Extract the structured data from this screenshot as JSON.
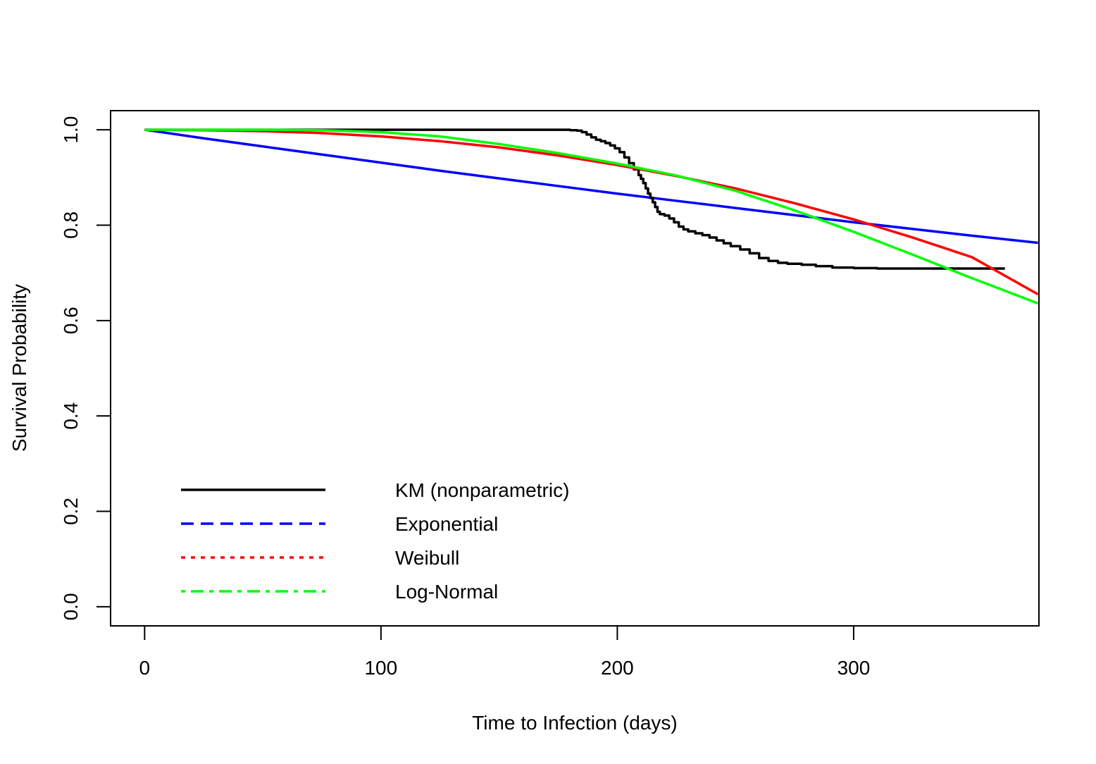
{
  "chart_data": {
    "type": "line",
    "title": "",
    "xlabel": "Time to Infection (days)",
    "ylabel": "Survival Probability",
    "xlim": [
      -14.4,
      378.4
    ],
    "ylim": [
      -0.04,
      1.04
    ],
    "x_ticks": [
      0,
      100,
      200,
      300
    ],
    "x_tick_labels": [
      "0",
      "100",
      "200",
      "300"
    ],
    "y_ticks": [
      0.0,
      0.2,
      0.4,
      0.6,
      0.8,
      1.0
    ],
    "y_tick_labels": [
      "0.0",
      "0.2",
      "0.4",
      "0.6",
      "0.8",
      "1.0"
    ],
    "grid": false,
    "legend_position": "bottom-left",
    "series": [
      {
        "name": "KM (nonparametric)",
        "color": "#000000",
        "legend_dash": "solid",
        "step": true,
        "x": [
          0,
          180,
          183,
          185,
          187,
          189,
          191,
          193,
          195,
          197,
          199,
          201,
          203,
          205,
          207,
          209,
          210,
          211,
          212,
          213,
          214,
          215,
          216,
          217,
          218,
          220,
          222,
          224,
          226,
          228,
          230,
          233,
          236,
          239,
          242,
          245,
          248,
          252,
          256,
          260,
          264,
          268,
          272,
          278,
          284,
          291,
          300,
          310,
          320,
          340,
          364
        ],
        "y": [
          1.0,
          0.999,
          0.998,
          0.995,
          0.99,
          0.984,
          0.979,
          0.976,
          0.972,
          0.967,
          0.961,
          0.953,
          0.942,
          0.93,
          0.917,
          0.905,
          0.897,
          0.888,
          0.877,
          0.866,
          0.857,
          0.848,
          0.838,
          0.828,
          0.823,
          0.82,
          0.814,
          0.806,
          0.797,
          0.791,
          0.787,
          0.783,
          0.779,
          0.774,
          0.768,
          0.762,
          0.756,
          0.749,
          0.741,
          0.731,
          0.725,
          0.721,
          0.719,
          0.717,
          0.714,
          0.711,
          0.71,
          0.709,
          0.709,
          0.709,
          0.709
        ]
      },
      {
        "name": "Exponential",
        "color": "#0000ff",
        "legend_dash": "dashed",
        "step": false,
        "x": [
          0,
          25,
          50,
          75,
          100,
          125,
          150,
          175,
          200,
          225,
          250,
          275,
          300,
          325,
          350,
          378
        ],
        "y": [
          1.0,
          0.982,
          0.965,
          0.948,
          0.931,
          0.914,
          0.898,
          0.882,
          0.866,
          0.851,
          0.836,
          0.821,
          0.806,
          0.792,
          0.778,
          0.763
        ]
      },
      {
        "name": "Weibull",
        "color": "#ff0000",
        "legend_dash": "dotted",
        "step": false,
        "x": [
          0,
          25,
          50,
          75,
          100,
          125,
          150,
          175,
          200,
          225,
          250,
          275,
          300,
          325,
          350,
          378
        ],
        "y": [
          1.0,
          0.999,
          0.997,
          0.993,
          0.986,
          0.976,
          0.963,
          0.946,
          0.926,
          0.903,
          0.877,
          0.846,
          0.812,
          0.774,
          0.733,
          0.655
        ]
      },
      {
        "name": "Log-Normal",
        "color": "#00ff00",
        "legend_dash": "dotdash",
        "step": false,
        "x": [
          0,
          25,
          50,
          75,
          100,
          125,
          150,
          175,
          200,
          225,
          250,
          275,
          300,
          325,
          350,
          378
        ],
        "y": [
          1.0,
          1.0,
          1.0,
          0.999,
          0.995,
          0.986,
          0.97,
          0.951,
          0.929,
          0.904,
          0.872,
          0.831,
          0.786,
          0.738,
          0.689,
          0.636
        ]
      }
    ]
  }
}
